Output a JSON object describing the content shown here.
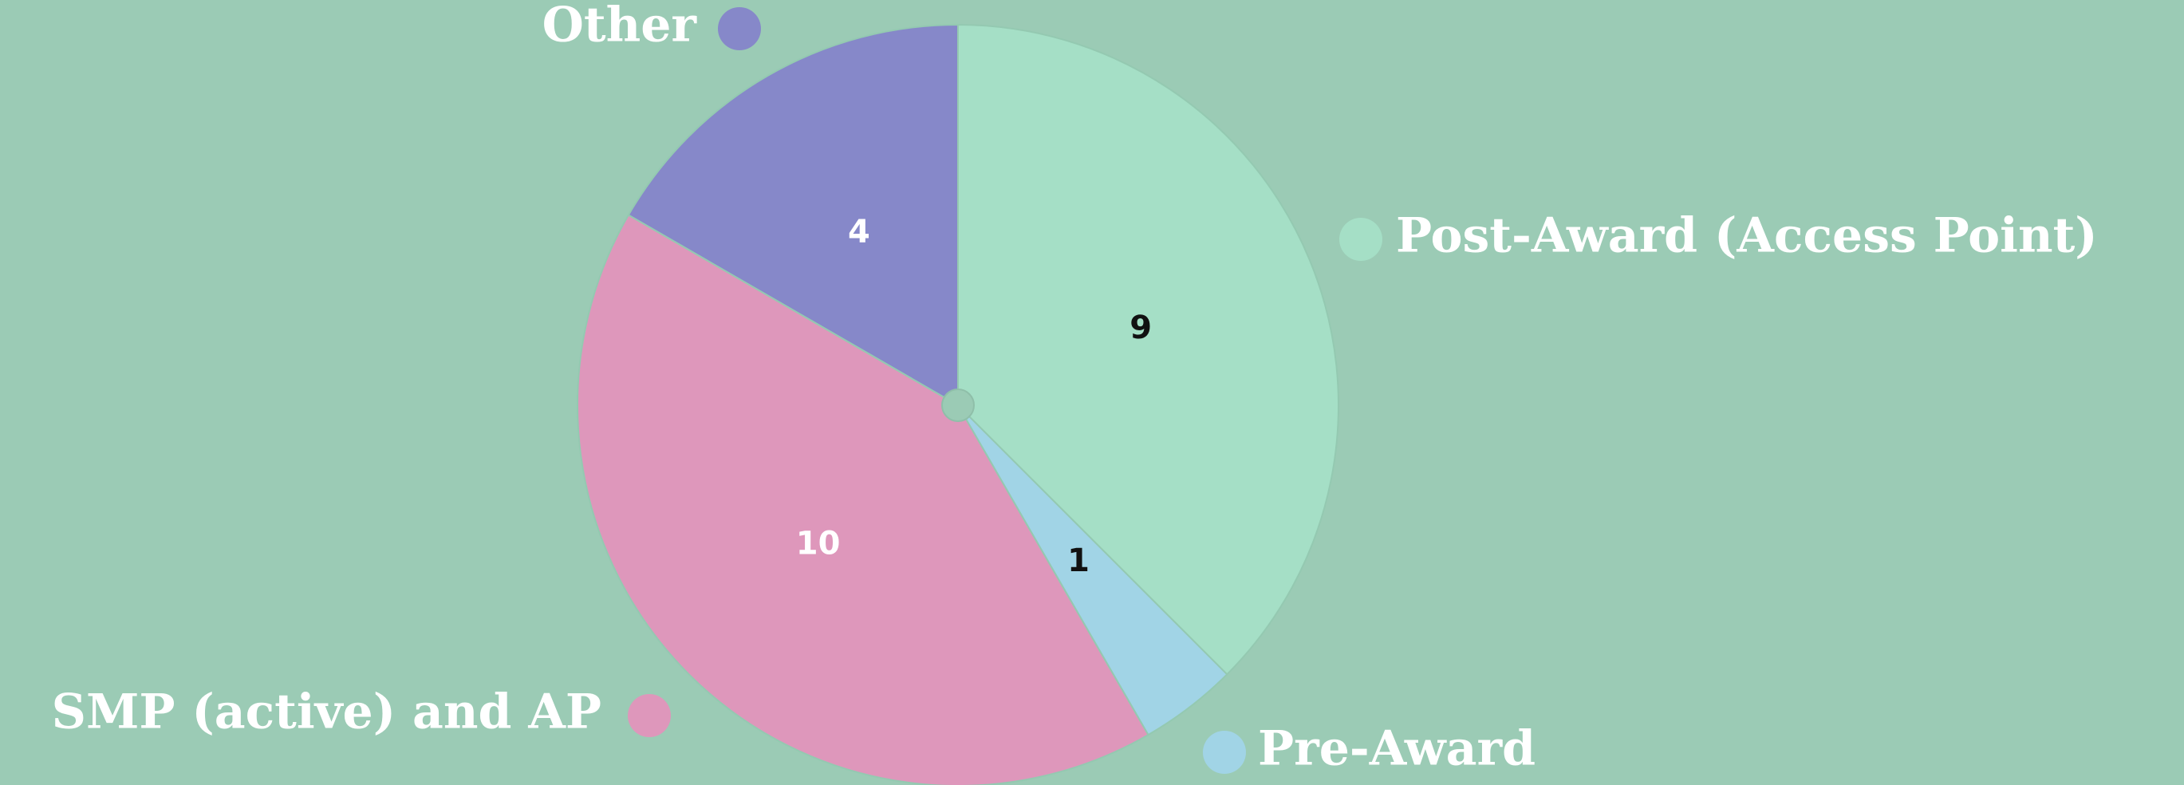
{
  "chart_data": {
    "type": "pie",
    "categories": [
      "Post-Award (Access Point)",
      "Pre-Award",
      "SMP (active) and AP",
      "Other"
    ],
    "values": [
      9,
      1,
      10,
      4
    ],
    "colors": [
      "#a5dfc6",
      "#a1d4e6",
      "#de97bb",
      "#8688c9"
    ]
  }
}
